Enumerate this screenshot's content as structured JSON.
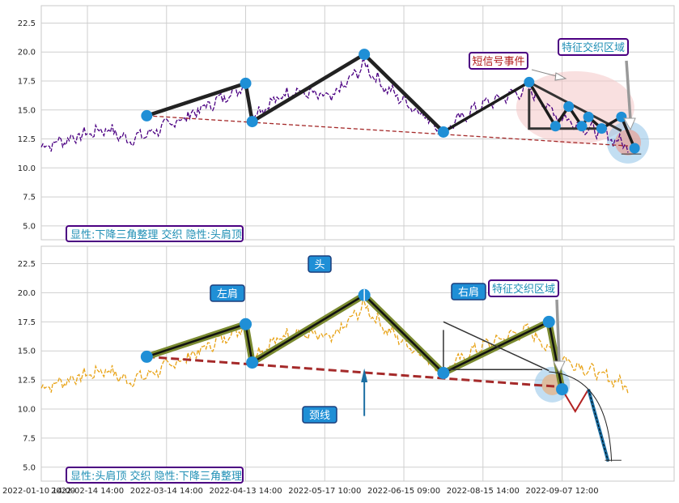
{
  "chart_data": [
    {
      "type": "line",
      "panel": "top",
      "caption": "显性:下降三角整理 交织 隐性:头肩顶",
      "ylim": [
        3.8,
        24
      ],
      "yticks": [
        "5.0",
        "7.5",
        "10.0",
        "12.5",
        "15.0",
        "17.5",
        "20.0",
        "22.5"
      ],
      "ytick_values": [
        5,
        7.5,
        10,
        12.5,
        15,
        17.5,
        20,
        22.5
      ],
      "price_color": "#4b0082",
      "annotations": {
        "short_signal": "短信号事件",
        "feature_zone": "特征交织区域"
      },
      "hs_pivots": {
        "x": [
          16,
          31,
          32,
          49,
          61
        ],
        "y": [
          14.5,
          17.3,
          14.0,
          19.8,
          13.1
        ]
      },
      "triangle_pivots": {
        "x": [
          61,
          74,
          78,
          80,
          82,
          83,
          85,
          88,
          90
        ],
        "y": [
          13.1,
          17.4,
          13.6,
          15.3,
          13.6,
          14.4,
          13.4,
          14.4,
          11.7
        ]
      },
      "neckline": {
        "x": [
          16,
          89
        ],
        "y": [
          14.5,
          11.9
        ]
      }
    },
    {
      "type": "line",
      "panel": "bottom",
      "caption": "显性:头肩顶 交织 隐性:下降三角整理",
      "ylim": [
        3.8,
        24
      ],
      "yticks": [
        "5.0",
        "7.5",
        "10.0",
        "12.5",
        "15.0",
        "17.5",
        "20.0",
        "22.5"
      ],
      "ytick_values": [
        5,
        7.5,
        10,
        12.5,
        15,
        17.5,
        20,
        22.5
      ],
      "price_color": "#e8a317",
      "labels": {
        "left_shoulder": "左肩",
        "head": "头",
        "right_shoulder": "右肩",
        "neckline": "颈线",
        "feature_zone": "特征交织区域"
      },
      "hs_pivots": {
        "x": [
          16,
          31,
          32,
          49,
          61,
          77,
          79
        ],
        "y": [
          14.5,
          17.3,
          14.0,
          19.8,
          13.1,
          17.5,
          11.7
        ]
      },
      "neckline": {
        "x": [
          16,
          79
        ],
        "y": [
          14.5,
          11.9
        ]
      },
      "projection": {
        "x": [
          79,
          81,
          83,
          86
        ],
        "y": [
          11.7,
          9.8,
          11.7,
          5.5
        ]
      }
    }
  ],
  "xaxis": {
    "ticks": [
      "2022-01-10 14:00",
      "2022-02-14 14:00",
      "2022-03-14 14:00",
      "2022-04-13 14:00",
      "2022-05-17 10:00",
      "2022-06-15 09:00",
      "2022-08-15 14:00",
      "2022-09-07 12:00"
    ]
  }
}
